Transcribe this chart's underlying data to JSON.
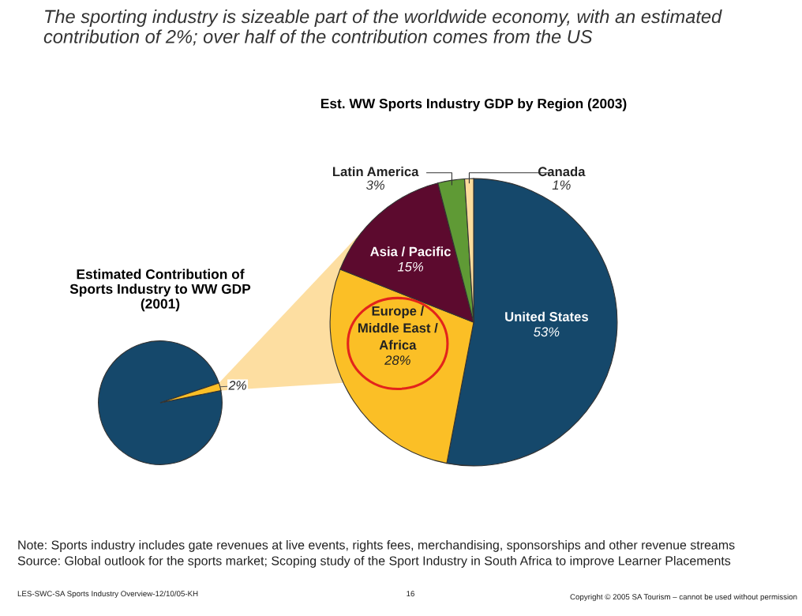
{
  "chart_data": [
    {
      "type": "pie",
      "title": "Estimated Contribution of Sports Industry to WW GDP (2001)",
      "categories": [
        null,
        null
      ],
      "values": [
        98,
        2
      ],
      "colors": [
        "#15486b",
        "#fbbf26"
      ],
      "value_labels": [
        null,
        "2%"
      ],
      "annotations": [
        "The sporting industry is sizeable part of the worldwide economy, with an estimated contribution of 2%; over half of the contribution comes from the US",
        "Note: Sports industry includes gate revenues at live events, rights fees, merchandising, sponsorships and other revenue streams",
        "Source: Global outlook for the sports market; Scoping study of the Sport Industry in South Africa to improve Learner Placements",
        "LES-SWC-SA Sports Industry Overview-12/10/05-KH",
        "16",
        "Copyright © 2005 SA Tourism – cannot be used without permission"
      ]
    },
    {
      "type": "pie",
      "title": "Est. WW Sports Industry GDP by Region (2003)",
      "categories": [
        "United States",
        "Europe / Middle East / Africa",
        "Asia / Pacific",
        "Latin America",
        "Canada"
      ],
      "values": [
        53,
        28,
        15,
        3,
        1
      ],
      "colors": [
        "#15486b",
        "#fbbf26",
        "#5c0a2e",
        "#5f9a35",
        "#fbdc9c"
      ],
      "value_labels": [
        "53%",
        "28%",
        "15%",
        "3%",
        "1%"
      ]
    }
  ]
}
